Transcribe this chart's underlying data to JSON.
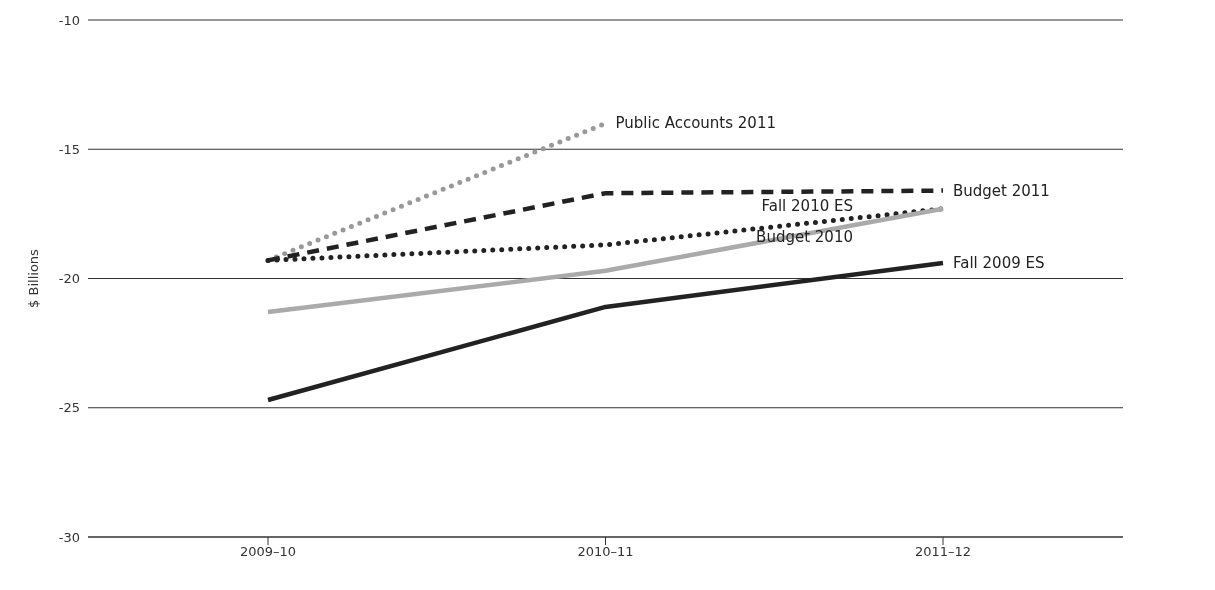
{
  "chart_data": {
    "type": "line",
    "ylabel": "$ Billions",
    "categories": [
      "2009–10",
      "2010–11",
      "2011–12"
    ],
    "series": [
      {
        "name": "Public Accounts 2011",
        "color": "#999999",
        "line_style": "dotted",
        "values": [
          -19.3,
          -14.0,
          null
        ]
      },
      {
        "name": "Budget 2011",
        "color": "#222222",
        "line_style": "dashed",
        "values": [
          -19.3,
          -16.7,
          -16.6
        ]
      },
      {
        "name": "Fall 2010 ES",
        "color": "#222222",
        "line_style": "dotted",
        "values": [
          -19.3,
          -18.7,
          -17.3
        ]
      },
      {
        "name": "Budget 2010",
        "color": "#aaaaaa",
        "line_style": "solid",
        "values": [
          -21.3,
          -19.7,
          -17.3
        ]
      },
      {
        "name": "Fall 2009 ES",
        "color": "#222222",
        "line_style": "solid",
        "values": [
          -24.7,
          -21.1,
          -19.4
        ]
      }
    ],
    "ylim": [
      -30,
      -10
    ],
    "yticks": [
      -30,
      -25,
      -20,
      -15,
      -10
    ],
    "grid": "y",
    "legend": false,
    "marker": "none"
  }
}
